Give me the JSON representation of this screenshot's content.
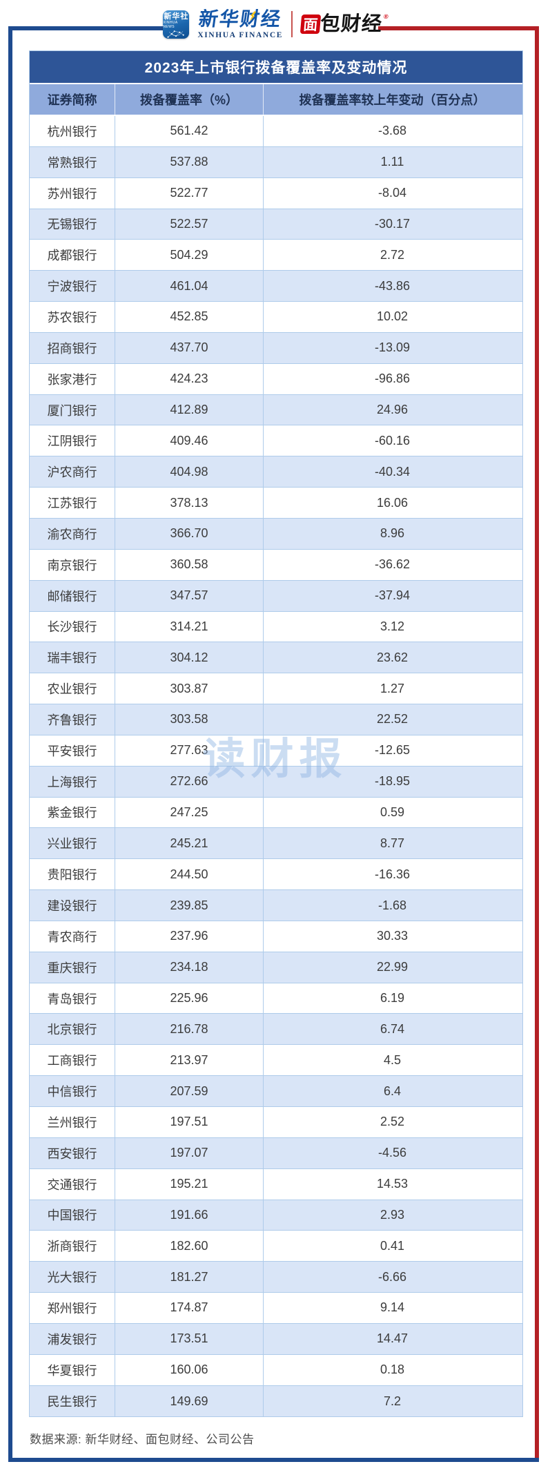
{
  "header": {
    "logos": {
      "xinhua_app": {
        "line1": "新华社",
        "line2": "XINHUA NEWS"
      },
      "xinhua_finance": {
        "cn": "新华财经",
        "en": "XINHUA FINANCE"
      },
      "bread_finance": {
        "cn_box": "面",
        "cn_rest": "包财经",
        "reg_mark": "®"
      }
    }
  },
  "table": {
    "title": "2023年上市银行拨备覆盖率及变动情况",
    "columns": [
      "证券简称",
      "拨备覆盖率（%）",
      "拨备覆盖率较上年变动（百分点）"
    ],
    "rows": [
      [
        "杭州银行",
        "561.42",
        "-3.68"
      ],
      [
        "常熟银行",
        "537.88",
        "1.11"
      ],
      [
        "苏州银行",
        "522.77",
        "-8.04"
      ],
      [
        "无锡银行",
        "522.57",
        "-30.17"
      ],
      [
        "成都银行",
        "504.29",
        "2.72"
      ],
      [
        "宁波银行",
        "461.04",
        "-43.86"
      ],
      [
        "苏农银行",
        "452.85",
        "10.02"
      ],
      [
        "招商银行",
        "437.70",
        "-13.09"
      ],
      [
        "张家港行",
        "424.23",
        "-96.86"
      ],
      [
        "厦门银行",
        "412.89",
        "24.96"
      ],
      [
        "江阴银行",
        "409.46",
        "-60.16"
      ],
      [
        "沪农商行",
        "404.98",
        "-40.34"
      ],
      [
        "江苏银行",
        "378.13",
        "16.06"
      ],
      [
        "渝农商行",
        "366.70",
        "8.96"
      ],
      [
        "南京银行",
        "360.58",
        "-36.62"
      ],
      [
        "邮储银行",
        "347.57",
        "-37.94"
      ],
      [
        "长沙银行",
        "314.21",
        "3.12"
      ],
      [
        "瑞丰银行",
        "304.12",
        "23.62"
      ],
      [
        "农业银行",
        "303.87",
        "1.27"
      ],
      [
        "齐鲁银行",
        "303.58",
        "22.52"
      ],
      [
        "平安银行",
        "277.63",
        "-12.65"
      ],
      [
        "上海银行",
        "272.66",
        "-18.95"
      ],
      [
        "紫金银行",
        "247.25",
        "0.59"
      ],
      [
        "兴业银行",
        "245.21",
        "8.77"
      ],
      [
        "贵阳银行",
        "244.50",
        "-16.36"
      ],
      [
        "建设银行",
        "239.85",
        "-1.68"
      ],
      [
        "青农商行",
        "237.96",
        "30.33"
      ],
      [
        "重庆银行",
        "234.18",
        "22.99"
      ],
      [
        "青岛银行",
        "225.96",
        "6.19"
      ],
      [
        "北京银行",
        "216.78",
        "6.74"
      ],
      [
        "工商银行",
        "213.97",
        "4.5"
      ],
      [
        "中信银行",
        "207.59",
        "6.4"
      ],
      [
        "兰州银行",
        "197.51",
        "2.52"
      ],
      [
        "西安银行",
        "197.07",
        "-4.56"
      ],
      [
        "交通银行",
        "195.21",
        "14.53"
      ],
      [
        "中国银行",
        "191.66",
        "2.93"
      ],
      [
        "浙商银行",
        "182.60",
        "0.41"
      ],
      [
        "光大银行",
        "181.27",
        "-6.66"
      ],
      [
        "郑州银行",
        "174.87",
        "9.14"
      ],
      [
        "浦发银行",
        "173.51",
        "14.47"
      ],
      [
        "华夏银行",
        "160.06",
        "0.18"
      ],
      [
        "民生银行",
        "149.69",
        "7.2"
      ]
    ]
  },
  "chart_data": {
    "type": "table",
    "title": "2023年上市银行拨备覆盖率及变动情况",
    "columns": [
      "证券简称",
      "拨备覆盖率（%）",
      "拨备覆盖率较上年变动（百分点）"
    ],
    "rows": [
      [
        "杭州银行",
        561.42,
        -3.68
      ],
      [
        "常熟银行",
        537.88,
        1.11
      ],
      [
        "苏州银行",
        522.77,
        -8.04
      ],
      [
        "无锡银行",
        522.57,
        -30.17
      ],
      [
        "成都银行",
        504.29,
        2.72
      ],
      [
        "宁波银行",
        461.04,
        -43.86
      ],
      [
        "苏农银行",
        452.85,
        10.02
      ],
      [
        "招商银行",
        437.7,
        -13.09
      ],
      [
        "张家港行",
        424.23,
        -96.86
      ],
      [
        "厦门银行",
        412.89,
        24.96
      ],
      [
        "江阴银行",
        409.46,
        -60.16
      ],
      [
        "沪农商行",
        404.98,
        -40.34
      ],
      [
        "江苏银行",
        378.13,
        16.06
      ],
      [
        "渝农商行",
        366.7,
        8.96
      ],
      [
        "南京银行",
        360.58,
        -36.62
      ],
      [
        "邮储银行",
        347.57,
        -37.94
      ],
      [
        "长沙银行",
        314.21,
        3.12
      ],
      [
        "瑞丰银行",
        304.12,
        23.62
      ],
      [
        "农业银行",
        303.87,
        1.27
      ],
      [
        "齐鲁银行",
        303.58,
        22.52
      ],
      [
        "平安银行",
        277.63,
        -12.65
      ],
      [
        "上海银行",
        272.66,
        -18.95
      ],
      [
        "紫金银行",
        247.25,
        0.59
      ],
      [
        "兴业银行",
        245.21,
        8.77
      ],
      [
        "贵阳银行",
        244.5,
        -16.36
      ],
      [
        "建设银行",
        239.85,
        -1.68
      ],
      [
        "青农商行",
        237.96,
        30.33
      ],
      [
        "重庆银行",
        234.18,
        22.99
      ],
      [
        "青岛银行",
        225.96,
        6.19
      ],
      [
        "北京银行",
        216.78,
        6.74
      ],
      [
        "工商银行",
        213.97,
        4.5
      ],
      [
        "中信银行",
        207.59,
        6.4
      ],
      [
        "兰州银行",
        197.51,
        2.52
      ],
      [
        "西安银行",
        197.07,
        -4.56
      ],
      [
        "交通银行",
        195.21,
        14.53
      ],
      [
        "中国银行",
        191.66,
        2.93
      ],
      [
        "浙商银行",
        182.6,
        0.41
      ],
      [
        "光大银行",
        181.27,
        -6.66
      ],
      [
        "郑州银行",
        174.87,
        9.14
      ],
      [
        "浦发银行",
        173.51,
        14.47
      ],
      [
        "华夏银行",
        160.06,
        0.18
      ],
      [
        "民生银行",
        149.69,
        7.2
      ]
    ]
  },
  "watermark": "读财报",
  "footer": {
    "source": "数据来源: 新华财经、面包财经、公司公告"
  },
  "colors": {
    "title_bar": "#2E5597",
    "header_row": "#8FAADC",
    "alt_row": "#D9E5F7",
    "grid_line": "#AECBEA",
    "frame_blue": "#1E4B8F",
    "frame_red": "#B42025",
    "brand_red": "#CF000E",
    "brand_blue": "#1456A8",
    "watermark_blue": "#8EB4E3"
  }
}
